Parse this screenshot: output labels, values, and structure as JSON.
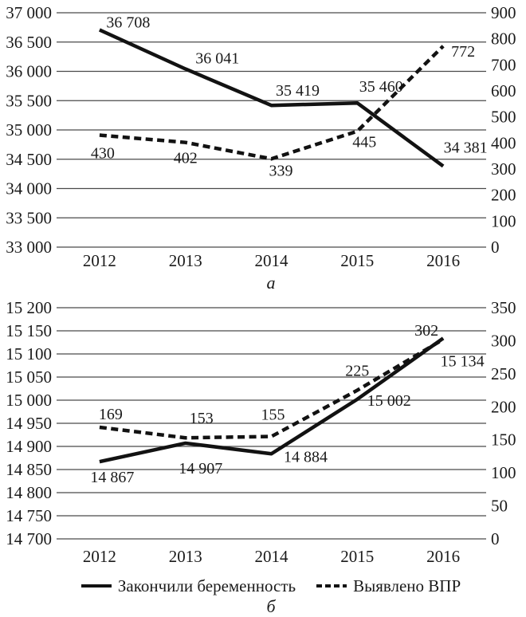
{
  "figure_colors": {
    "line": "#121212",
    "grid": "#4a4a4a",
    "text": "#1a1a1a"
  },
  "legend": {
    "items": [
      {
        "label": "Закончили беременность",
        "line_style": "solid"
      },
      {
        "label": "Выявлено ВПР",
        "line_style": "dashed"
      }
    ]
  },
  "panels": [
    {
      "caption": "а"
    },
    {
      "caption": "б"
    }
  ],
  "chart_data": [
    {
      "type": "line",
      "panel": "a",
      "caption": "а",
      "categories": [
        "2012",
        "2013",
        "2014",
        "2015",
        "2016"
      ],
      "series": [
        {
          "name": "Закончили беременность",
          "axis": "left",
          "line_style": "solid",
          "values": [
            36708,
            36041,
            35419,
            35460,
            34381
          ],
          "labels": [
            "36 708",
            "36 041",
            "35 419",
            "35 460",
            "34 381"
          ]
        },
        {
          "name": "Выявлено ВПР",
          "axis": "right",
          "line_style": "dashed",
          "values": [
            430,
            402,
            339,
            445,
            772
          ],
          "labels": [
            "430",
            "402",
            "339",
            "445",
            "772"
          ]
        }
      ],
      "left_axis": {
        "min": 33000,
        "max": 37000,
        "step": 500,
        "tick_labels": [
          "37 000",
          "36 500",
          "36 000",
          "35 500",
          "35 000",
          "34 500",
          "34 000",
          "33 500",
          "33 000"
        ]
      },
      "right_axis": {
        "min": 0,
        "max": 900,
        "step": 100,
        "tick_labels": [
          "900",
          "800",
          "700",
          "600",
          "500",
          "400",
          "300",
          "200",
          "100",
          "0"
        ]
      },
      "grid": "horizontal-only",
      "legend_position": "shared-bottom"
    },
    {
      "type": "line",
      "panel": "b",
      "caption": "б",
      "categories": [
        "2012",
        "2013",
        "2014",
        "2015",
        "2016"
      ],
      "series": [
        {
          "name": "Закончили беременность",
          "axis": "left",
          "line_style": "solid",
          "values": [
            14867,
            14907,
            14884,
            15002,
            15134
          ],
          "labels": [
            "14 867",
            "14 907",
            "14 884",
            "15 002",
            "15 134"
          ]
        },
        {
          "name": "Выявлено ВПР",
          "axis": "right",
          "line_style": "dashed",
          "values": [
            169,
            153,
            155,
            225,
            302
          ],
          "labels": [
            "169",
            "153",
            "155",
            "225",
            "302"
          ]
        }
      ],
      "left_axis": {
        "min": 14700,
        "max": 15200,
        "step": 50,
        "tick_labels": [
          "15 200",
          "15 150",
          "15 100",
          "15 050",
          "15 000",
          "14 950",
          "14 900",
          "14 850",
          "14 800",
          "14 750",
          "14 700"
        ]
      },
      "right_axis": {
        "min": 0,
        "max": 350,
        "step": 50,
        "tick_labels": [
          "350",
          "300",
          "250",
          "200",
          "150",
          "100",
          "50",
          "0"
        ]
      },
      "grid": "horizontal-only",
      "legend_position": "shared-bottom"
    }
  ]
}
